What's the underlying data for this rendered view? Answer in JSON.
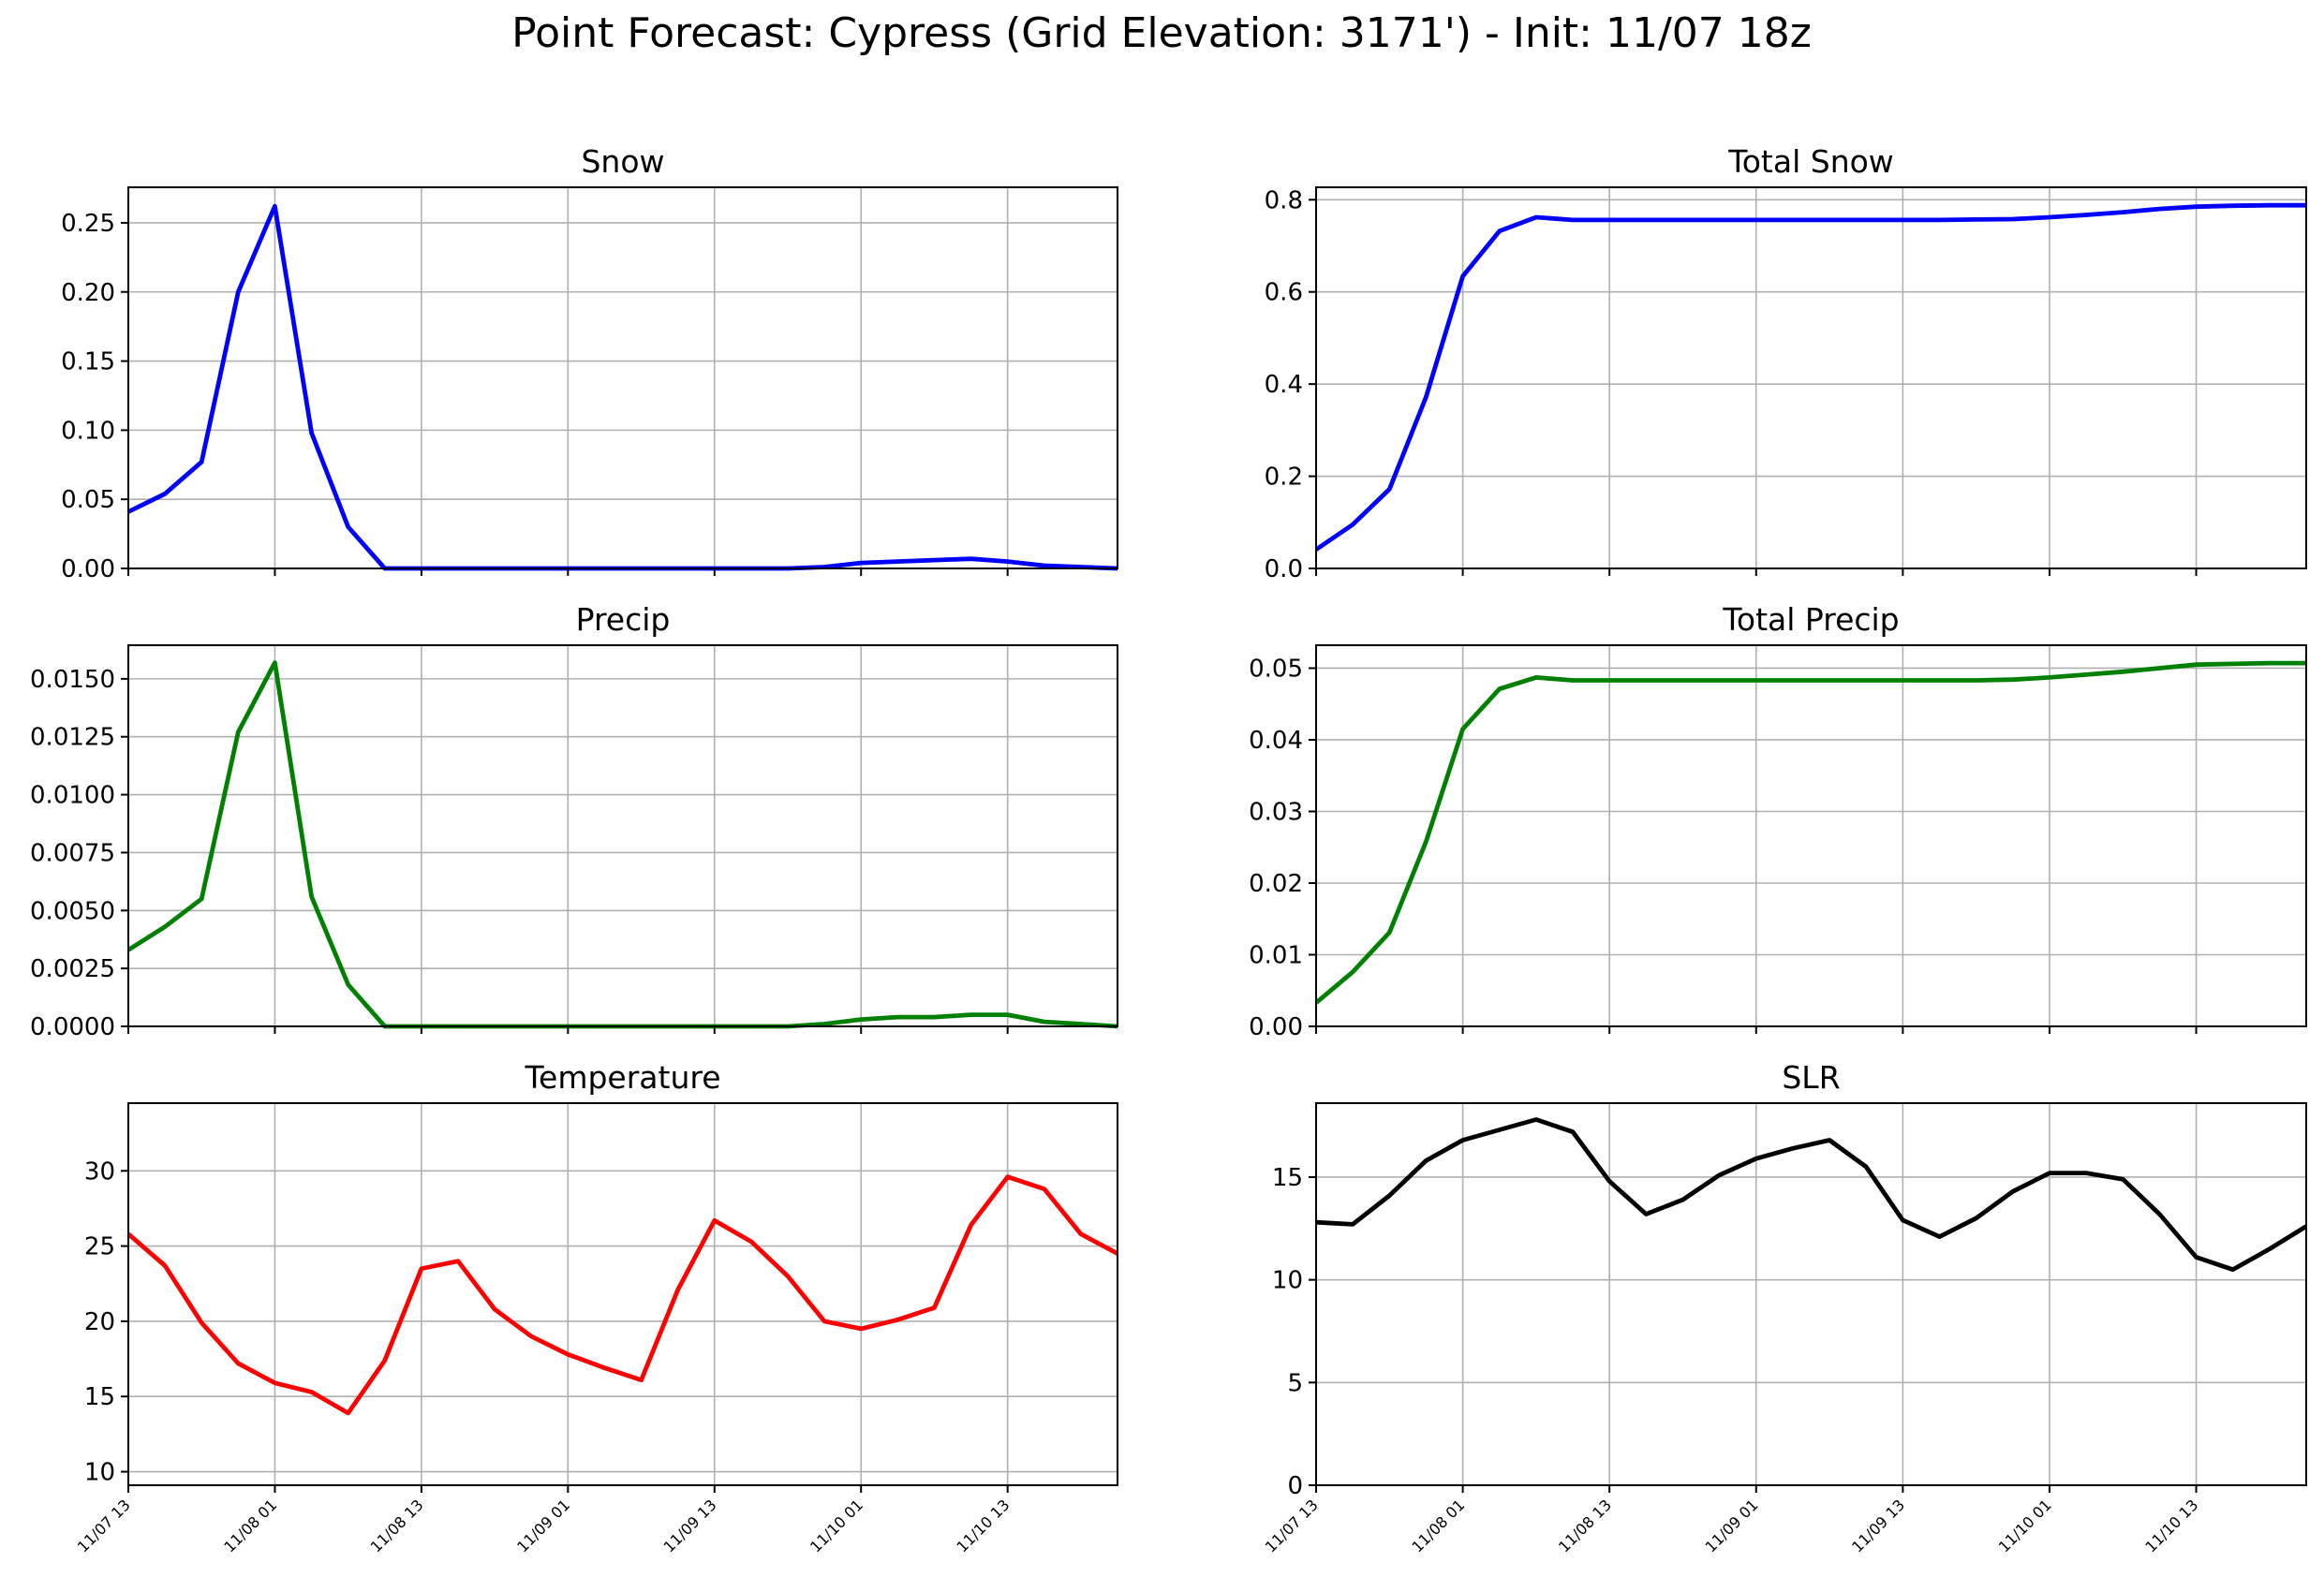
{
  "figure": {
    "title": "Point Forecast: Cypress (Grid Elevation: 3171') - Init: 11/07 18z"
  },
  "chart_data": [
    {
      "type": "line",
      "title": "Snow",
      "color": "#0000ff",
      "x_hours": [
        0,
        3,
        6,
        9,
        12,
        15,
        18,
        21,
        24,
        27,
        30,
        33,
        36,
        39,
        42,
        45,
        48,
        51,
        54,
        57,
        60,
        63,
        66,
        69,
        72,
        75,
        78,
        81
      ],
      "values": [
        0.041,
        0.054,
        0.077,
        0.2,
        0.262,
        0.098,
        0.03,
        0.0,
        0.0,
        0.0,
        0.0,
        0.0,
        0.0,
        0.0,
        0.0,
        0.0,
        0.0,
        0.0,
        0.0,
        0.001,
        0.004,
        0.005,
        0.006,
        0.007,
        0.005,
        0.002,
        0.001,
        0.0
      ],
      "ylim": [
        0,
        0.2757
      ],
      "yticks": [
        0.0,
        0.05,
        0.1,
        0.15,
        0.2,
        0.25
      ],
      "ytick_labels": [
        "0.00",
        "0.05",
        "0.10",
        "0.15",
        "0.20",
        "0.25"
      ],
      "xlim": [
        0,
        81
      ],
      "xticks": [
        0,
        12,
        24,
        36,
        48,
        60,
        72
      ],
      "xtick_labels": [
        "11/07 13",
        "11/08 01",
        "11/08 13",
        "11/09 01",
        "11/09 13",
        "11/10 01",
        "11/10 13"
      ],
      "grid": true
    },
    {
      "type": "line",
      "title": "Total Snow",
      "color": "#0000ff",
      "x_hours": [
        0,
        3,
        6,
        9,
        12,
        15,
        18,
        21,
        24,
        27,
        30,
        33,
        36,
        39,
        42,
        45,
        48,
        51,
        54,
        57,
        60,
        63,
        66,
        69,
        72,
        75,
        78,
        81
      ],
      "values": [
        0.041,
        0.095,
        0.172,
        0.372,
        0.634,
        0.732,
        0.762,
        0.756,
        0.756,
        0.756,
        0.756,
        0.756,
        0.756,
        0.756,
        0.756,
        0.756,
        0.756,
        0.756,
        0.757,
        0.758,
        0.762,
        0.767,
        0.773,
        0.78,
        0.785,
        0.787,
        0.788,
        0.788
      ],
      "ylim": [
        0,
        0.827
      ],
      "yticks": [
        0.0,
        0.2,
        0.4,
        0.6,
        0.8
      ],
      "ytick_labels": [
        "0.0",
        "0.2",
        "0.4",
        "0.6",
        "0.8"
      ],
      "xlim": [
        0,
        81
      ],
      "xticks": [
        0,
        12,
        24,
        36,
        48,
        60,
        72
      ],
      "xtick_labels": [
        "11/07 13",
        "11/08 01",
        "11/08 13",
        "11/09 01",
        "11/09 13",
        "11/10 01",
        "11/10 13"
      ],
      "grid": true
    },
    {
      "type": "line",
      "title": "Precip",
      "color": "#008000",
      "x_hours": [
        0,
        3,
        6,
        9,
        12,
        15,
        18,
        21,
        24,
        27,
        30,
        33,
        36,
        39,
        42,
        45,
        48,
        51,
        54,
        57,
        60,
        63,
        66,
        69,
        72,
        75,
        78,
        81
      ],
      "values": [
        0.0033,
        0.0043,
        0.0055,
        0.0127,
        0.0157,
        0.0056,
        0.0018,
        0.0,
        0.0,
        0.0,
        0.0,
        0.0,
        0.0,
        0.0,
        0.0,
        0.0,
        0.0,
        0.0,
        0.0,
        0.0001,
        0.0003,
        0.0004,
        0.0004,
        0.0005,
        0.0005,
        0.0002,
        0.0001,
        0.0
      ],
      "ylim": [
        0,
        0.01645
      ],
      "yticks": [
        0.0,
        0.0025,
        0.005,
        0.0075,
        0.01,
        0.0125,
        0.015
      ],
      "ytick_labels": [
        "0.0000",
        "0.0025",
        "0.0050",
        "0.0075",
        "0.0100",
        "0.0125",
        "0.0150"
      ],
      "xlim": [
        0,
        81
      ],
      "xticks": [
        0,
        12,
        24,
        36,
        48,
        60,
        72
      ],
      "xtick_labels": [
        "11/07 13",
        "11/08 01",
        "11/08 13",
        "11/09 01",
        "11/09 13",
        "11/10 01",
        "11/10 13"
      ],
      "grid": true
    },
    {
      "type": "line",
      "title": "Total Precip",
      "color": "#008000",
      "x_hours": [
        0,
        3,
        6,
        9,
        12,
        15,
        18,
        21,
        24,
        27,
        30,
        33,
        36,
        39,
        42,
        45,
        48,
        51,
        54,
        57,
        60,
        63,
        66,
        69,
        72,
        75,
        78,
        81
      ],
      "values": [
        0.0033,
        0.0076,
        0.0131,
        0.0258,
        0.0415,
        0.0471,
        0.0487,
        0.0483,
        0.0483,
        0.0483,
        0.0483,
        0.0483,
        0.0483,
        0.0483,
        0.0483,
        0.0483,
        0.0483,
        0.0483,
        0.0483,
        0.0484,
        0.0487,
        0.0491,
        0.0495,
        0.05,
        0.0505,
        0.0506,
        0.0507,
        0.0507
      ],
      "ylim": [
        0,
        0.0532
      ],
      "yticks": [
        0.0,
        0.01,
        0.02,
        0.03,
        0.04,
        0.05
      ],
      "ytick_labels": [
        "0.00",
        "0.01",
        "0.02",
        "0.03",
        "0.04",
        "0.05"
      ],
      "xlim": [
        0,
        81
      ],
      "xticks": [
        0,
        12,
        24,
        36,
        48,
        60,
        72
      ],
      "xtick_labels": [
        "11/07 13",
        "11/08 01",
        "11/08 13",
        "11/09 01",
        "11/09 13",
        "11/10 01",
        "11/10 13"
      ],
      "grid": true
    },
    {
      "type": "line",
      "title": "Temperature",
      "color": "#ff0000",
      "x_hours": [
        0,
        3,
        6,
        9,
        12,
        15,
        18,
        21,
        24,
        27,
        30,
        33,
        36,
        39,
        42,
        45,
        48,
        51,
        54,
        57,
        60,
        63,
        66,
        69,
        72,
        75,
        78,
        81
      ],
      "values": [
        25.8,
        23.7,
        19.9,
        17.2,
        15.9,
        15.3,
        13.9,
        17.4,
        23.5,
        24.0,
        20.8,
        19.0,
        17.8,
        16.9,
        16.1,
        22.1,
        26.7,
        25.3,
        23.0,
        20.0,
        19.5,
        20.1,
        20.9,
        26.4,
        29.6,
        28.8,
        25.8,
        24.5
      ],
      "ylim": [
        9.1,
        34.5
      ],
      "yticks": [
        10,
        15,
        20,
        25,
        30
      ],
      "ytick_labels": [
        "10",
        "15",
        "20",
        "25",
        "30"
      ],
      "xlim": [
        0,
        81
      ],
      "xticks": [
        0,
        12,
        24,
        36,
        48,
        60,
        72
      ],
      "xtick_labels": [
        "11/07 13",
        "11/08 01",
        "11/08 13",
        "11/09 01",
        "11/09 13",
        "11/10 01",
        "11/10 13"
      ],
      "grid": true
    },
    {
      "type": "line",
      "title": "SLR",
      "color": "#000000",
      "x_hours": [
        0,
        3,
        6,
        9,
        12,
        15,
        18,
        21,
        24,
        27,
        30,
        33,
        36,
        39,
        42,
        45,
        48,
        51,
        54,
        57,
        60,
        63,
        66,
        69,
        72,
        75,
        78,
        81
      ],
      "values": [
        12.8,
        12.7,
        14.1,
        15.8,
        16.8,
        17.3,
        17.8,
        17.2,
        14.8,
        13.2,
        13.9,
        15.1,
        15.9,
        16.4,
        16.8,
        15.5,
        12.9,
        12.1,
        13.0,
        14.3,
        15.2,
        15.2,
        14.9,
        13.2,
        11.1,
        10.5,
        11.5,
        12.6
      ],
      "ylim": [
        0,
        18.6
      ],
      "yticks": [
        0,
        5,
        10,
        15
      ],
      "ytick_labels": [
        "0",
        "5",
        "10",
        "15"
      ],
      "xlim": [
        0,
        81
      ],
      "xticks": [
        0,
        12,
        24,
        36,
        48,
        60,
        72
      ],
      "xtick_labels": [
        "11/07 13",
        "11/08 01",
        "11/08 13",
        "11/09 01",
        "11/09 13",
        "11/10 01",
        "11/10 13"
      ],
      "grid": true
    }
  ]
}
